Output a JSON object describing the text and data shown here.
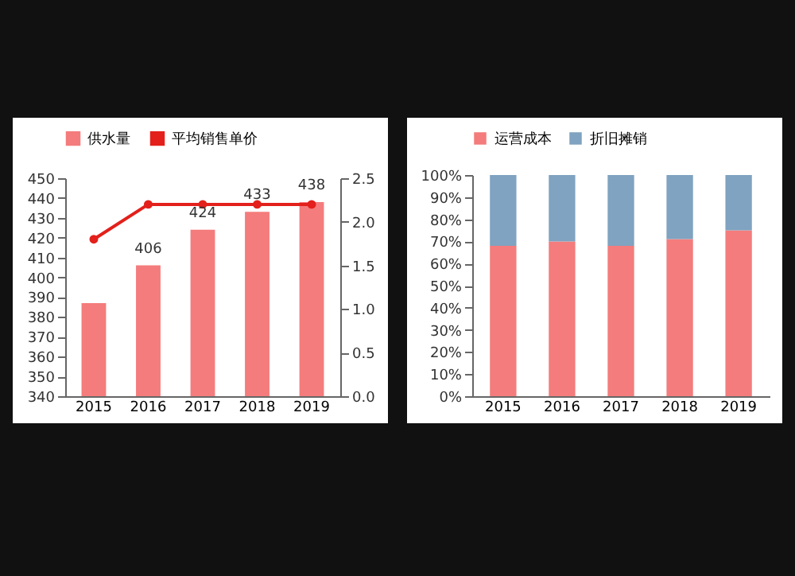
{
  "chart_data": [
    {
      "type": "bar",
      "categories": [
        "2015",
        "2016",
        "2017",
        "2018",
        "2019"
      ],
      "series": [
        {
          "name": "供水量",
          "color": "#f47c7c",
          "values": [
            387,
            406,
            424,
            433,
            438
          ],
          "value_labels": [
            null,
            "406",
            "424",
            "433",
            "438"
          ]
        },
        {
          "name": "平均销售单价",
          "type": "line",
          "axis": "y2",
          "color": "#e3201b",
          "values": [
            1.8,
            2.2,
            2.2,
            2.2,
            2.2
          ]
        }
      ],
      "ylim": [
        340,
        450
      ],
      "yticks": [
        340,
        350,
        360,
        370,
        380,
        390,
        400,
        410,
        420,
        430,
        440,
        450
      ],
      "y2lim": [
        0,
        2.5
      ],
      "y2ticks": [
        {
          "value": 0,
          "label": "0.0"
        },
        {
          "value": 0.5,
          "label": "0.5"
        },
        {
          "value": 1,
          "label": "1.0"
        },
        {
          "value": 1.5,
          "label": "1.5"
        },
        {
          "value": 2,
          "label": "2.0"
        },
        {
          "value": 2.5,
          "label": "2.5"
        }
      ],
      "marker": "circle",
      "legend": "top",
      "grid": false
    },
    {
      "type": "bar",
      "stacked": true,
      "categories": [
        "2015",
        "2016",
        "2017",
        "2018",
        "2019"
      ],
      "series": [
        {
          "name": "运营成本",
          "color": "#f47c7c",
          "values": [
            68,
            70,
            68,
            71,
            75
          ]
        },
        {
          "name": "折旧摊销",
          "color": "#7fa3c0",
          "values": [
            32,
            30,
            32,
            29,
            25
          ]
        }
      ],
      "ylim": [
        0,
        100
      ],
      "yticks": [
        {
          "value": 0,
          "label": "0%"
        },
        {
          "value": 10,
          "label": "10%"
        },
        {
          "value": 20,
          "label": "20%"
        },
        {
          "value": 30,
          "label": "30%"
        },
        {
          "value": 40,
          "label": "40%"
        },
        {
          "value": 50,
          "label": "50%"
        },
        {
          "value": 60,
          "label": "60%"
        },
        {
          "value": 70,
          "label": "70%"
        },
        {
          "value": 80,
          "label": "80%"
        },
        {
          "value": 90,
          "label": "90%"
        },
        {
          "value": 100,
          "label": "100%"
        }
      ],
      "legend": "top",
      "grid": false
    }
  ]
}
